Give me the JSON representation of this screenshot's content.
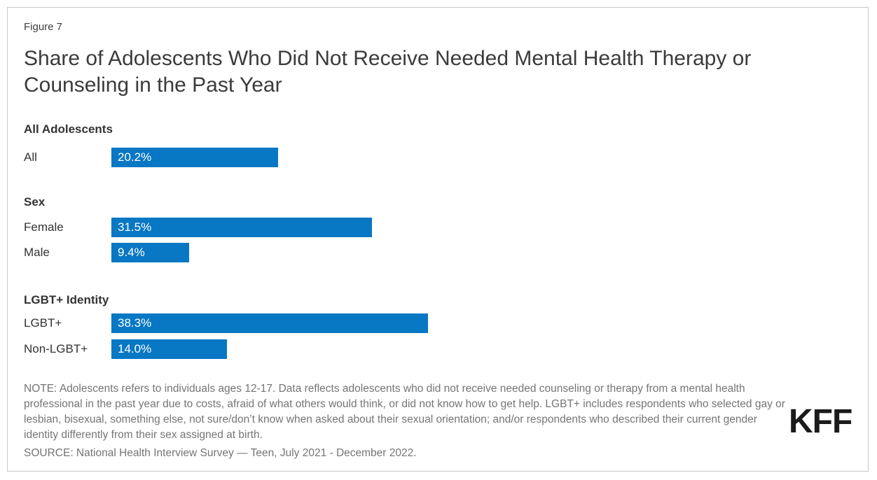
{
  "figure_label": "Figure 7",
  "title": "Share of Adolescents Who Did Not Receive Needed Mental Health Therapy or Counseling in the Past Year",
  "chart_data": {
    "type": "bar",
    "orientation": "horizontal",
    "unit": "%",
    "bar_color": "#0877c4",
    "value_label_color": "#ffffff",
    "xlim": [
      0,
      40
    ],
    "grid": false,
    "legend": "none",
    "groups": [
      {
        "header": "All Adolescents",
        "rows": [
          {
            "label": "All",
            "value": 20.2,
            "display": "20.2%"
          }
        ]
      },
      {
        "header": "Sex",
        "rows": [
          {
            "label": "Female",
            "value": 31.5,
            "display": "31.5%"
          },
          {
            "label": "Male",
            "value": 9.4,
            "display": "9.4%"
          }
        ]
      },
      {
        "header": "LGBT+ Identity",
        "rows": [
          {
            "label": "LGBT+",
            "value": 38.3,
            "display": "38.3%"
          },
          {
            "label": "Non-LGBT+",
            "value": 14.0,
            "display": "14.0%"
          }
        ]
      }
    ]
  },
  "footer": {
    "note": "NOTE: Adolescents refers to individuals ages 12-17. Data reflects adolescents who did not receive needed counseling or therapy from a mental health professional in the past year due to costs, afraid of what others would think, or did not know how to get help. LGBT+ includes respondents who selected gay or lesbian, bisexual, something else, not sure/don’t know when asked about their sexual orientation; and/or respondents who described their current gender identity differently from their sex assigned at birth.",
    "source": "SOURCE: National Health Interview Survey — Teen, July 2021 - December 2022.",
    "logo_text": "KFF"
  }
}
